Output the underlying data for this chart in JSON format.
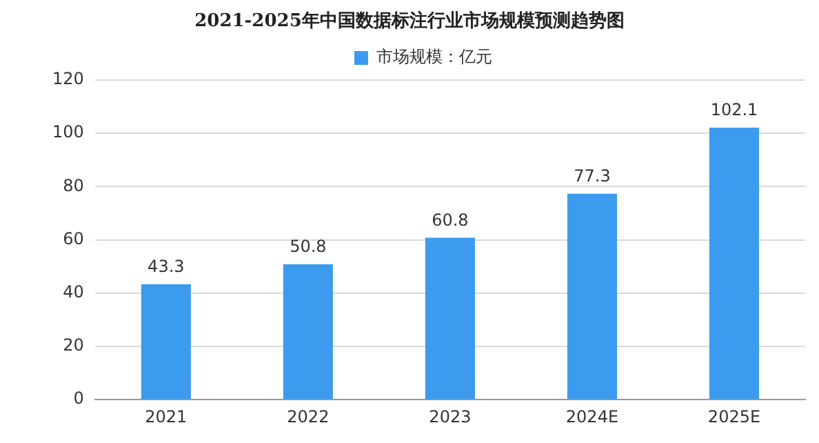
{
  "chart_data": {
    "type": "bar",
    "title": "2021-2025年中国数据标注行业市场规模预测趋势图",
    "categories": [
      "2021",
      "2022",
      "2023",
      "2024E",
      "2025E"
    ],
    "series": [
      {
        "name": "市场规模：亿元",
        "color": "#3d9bef",
        "values": [
          43.3,
          50.8,
          60.8,
          77.3,
          102.1
        ]
      }
    ],
    "ylim": [
      0,
      120
    ],
    "yticks": [
      0,
      20,
      40,
      60,
      80,
      100,
      120
    ],
    "grid": "y",
    "legend": "top",
    "data_labels": true
  }
}
